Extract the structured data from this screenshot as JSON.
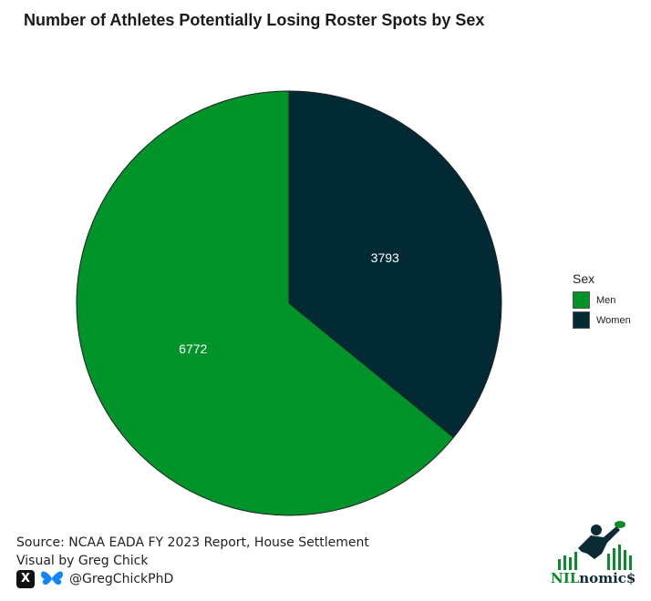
{
  "title": "Number of Athletes Potentially Losing Roster Spots by Sex",
  "legend": {
    "title": "Sex",
    "items": [
      {
        "label": "Men",
        "color": "#00932a"
      },
      {
        "label": "Women",
        "color": "#022a35"
      }
    ]
  },
  "chart_data": {
    "type": "pie",
    "title": "Number of Athletes Potentially Losing Roster Spots by Sex",
    "legend_title": "Sex",
    "legend_position": "right",
    "slices": [
      {
        "label": "Women",
        "value": 3793,
        "color": "#022a35"
      },
      {
        "label": "Men",
        "value": 6772,
        "color": "#00932a"
      }
    ]
  },
  "footer": {
    "source": "Source: NCAA EADA FY 2023 Report, House Settlement",
    "credit": "Visual by Greg Chick",
    "handle": "@GregChickPhD"
  },
  "logo": {
    "nil": "NIL",
    "rest": "nomic$"
  }
}
